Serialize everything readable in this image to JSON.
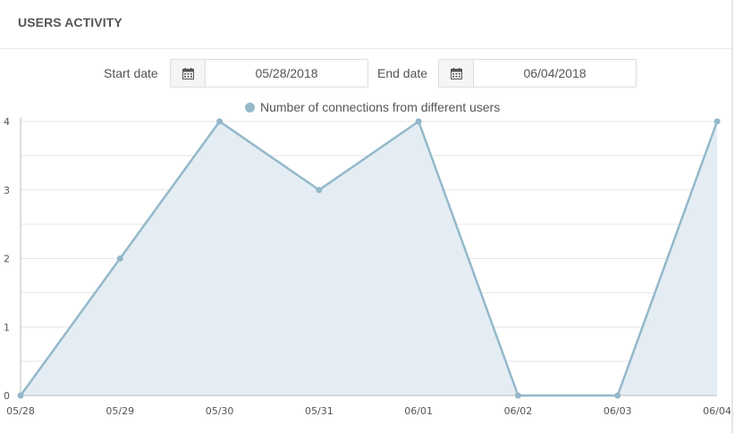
{
  "header": {
    "title": "USERS ACTIVITY"
  },
  "filters": {
    "start_label": "Start date",
    "start_value": "05/28/2018",
    "end_label": "End date",
    "end_value": "06/04/2018",
    "icon": "calendar-icon"
  },
  "colors": {
    "line": "#94b8ca",
    "fill": "#e4edf3",
    "grid": "#e6e6e6",
    "axis": "#bdbdbd"
  },
  "chart_data": {
    "type": "area",
    "categories": [
      "05/28",
      "05/29",
      "05/30",
      "05/31",
      "06/01",
      "06/02",
      "06/03",
      "06/04"
    ],
    "series": [
      {
        "name": "Number of connections from different users",
        "values": [
          0,
          2,
          4,
          3,
          4,
          0,
          0,
          4
        ]
      }
    ],
    "ylim": [
      0,
      4
    ],
    "yticks": [
      0,
      1,
      2,
      3,
      4
    ],
    "grid": true,
    "legend_position": "top-center"
  }
}
